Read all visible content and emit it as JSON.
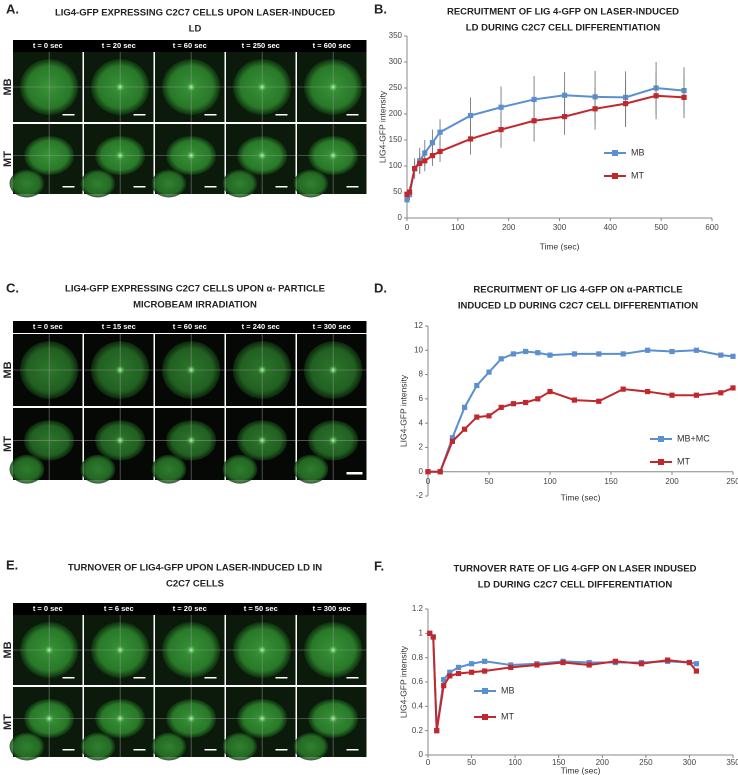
{
  "panels": [
    {
      "label": "A.",
      "title_lines": [
        "LIG4-GFP EXPRESSING C2C7 CELLS UPON LASER-INDUCED",
        "LD"
      ],
      "times": [
        "t = 0 sec",
        "t = 20 sec",
        "t = 60 sec",
        "t = 250 sec",
        "t = 600 sec"
      ],
      "rows": [
        "MB",
        "MT"
      ]
    },
    {
      "label": "C.",
      "title_lines": [
        "LIG4-GFP EXPRESSING C2C7 CELLS UPON α- PARTICLE",
        "MICROBEAM IRRADIATION"
      ],
      "times": [
        "t = 0 sec",
        "t = 15 sec",
        "t = 60 sec",
        "t = 240 sec",
        "t = 300 sec"
      ],
      "rows": [
        "MB",
        "MT"
      ]
    },
    {
      "label": "E.",
      "title_lines": [
        "TURNOVER OF LIG4-GFP UPON LASER-INDUCED LD IN",
        "C2C7 CELLS"
      ],
      "times": [
        "t = 0 sec",
        "t = 6 sec",
        "t = 20 sec",
        "t = 50 sec",
        "t = 300 sec"
      ],
      "rows": [
        "MB",
        "MT"
      ]
    }
  ],
  "chart_data": [
    {
      "type": "line",
      "panel_label": "B.",
      "title_lines": [
        "RECRUITMENT OF LIG 4-GFP ON LASER-INDUCED",
        "LD DURING C2C7 CELL DIFFERENTIATION"
      ],
      "x_label": "Time (sec)",
      "y_label": "LIG4-GFP intensity",
      "x": [
        0,
        5,
        15,
        25,
        35,
        50,
        65,
        125,
        185,
        250,
        310,
        370,
        430,
        490,
        545
      ],
      "series": [
        {
          "name": "MB",
          "color": "#5b8fd0",
          "values": [
            35,
            45,
            95,
            110,
            125,
            145,
            165,
            197,
            213,
            228,
            236,
            233,
            232,
            250,
            245
          ],
          "errors": [
            5,
            10,
            20,
            25,
            25,
            25,
            25,
            35,
            40,
            45,
            45,
            50,
            50,
            50,
            45
          ]
        },
        {
          "name": "MT",
          "color": "#c0282d",
          "values": [
            45,
            50,
            95,
            105,
            110,
            120,
            128,
            152,
            170,
            187,
            195,
            210,
            220,
            235,
            232
          ],
          "errors": [
            5,
            10,
            15,
            20,
            20,
            20,
            20,
            30,
            35,
            40,
            35,
            40,
            45,
            45,
            40
          ]
        }
      ],
      "xlim": [
        0,
        600
      ],
      "xticks": [
        0,
        100,
        200,
        300,
        400,
        500,
        600
      ],
      "ylim": [
        0,
        350
      ],
      "yticks": [
        0,
        50,
        100,
        150,
        200,
        250,
        300,
        350
      ]
    },
    {
      "type": "line",
      "panel_label": "D.",
      "title_lines": [
        "RECRUITMENT OF LIG 4-GFP ON α-PARTICLE",
        "INDUCED LD DURING C2C7 CELL DIFFERENTIATION"
      ],
      "x_label": "Time (sec)",
      "y_label": "LIG4-GFP intensity",
      "x": [
        0,
        10,
        20,
        30,
        40,
        50,
        60,
        70,
        80,
        90,
        100,
        120,
        140,
        160,
        180,
        200,
        220,
        240,
        250
      ],
      "series": [
        {
          "name": "MB+MC",
          "color": "#5b8fd0",
          "values": [
            0,
            0,
            2.8,
            5.3,
            7.1,
            8.2,
            9.3,
            9.7,
            9.9,
            9.8,
            9.6,
            9.7,
            9.7,
            9.7,
            10.0,
            9.9,
            10.0,
            9.6,
            9.5
          ]
        },
        {
          "name": "MT",
          "color": "#c0282d",
          "values": [
            0,
            0,
            2.5,
            3.5,
            4.5,
            4.6,
            5.3,
            5.6,
            5.7,
            6.0,
            6.6,
            5.9,
            5.8,
            6.8,
            6.6,
            6.3,
            6.3,
            6.5,
            6.9
          ]
        }
      ],
      "xlim": [
        0,
        250
      ],
      "xticks": [
        0,
        50,
        100,
        150,
        200,
        250
      ],
      "ylim": [
        -2,
        12
      ],
      "yticks": [
        -2,
        0,
        2,
        4,
        6,
        8,
        10,
        12
      ]
    },
    {
      "type": "line",
      "panel_label": "F.",
      "title_lines": [
        "TURNOVER RATE OF LIG 4-GFP ON LASER INDUSED",
        "LD DURING C2C7 CELL DIFFERENTIATION"
      ],
      "x_label": "Time (sec)",
      "y_label": "LIG4-GFP intensity",
      "x": [
        2,
        6,
        10,
        18,
        25,
        35,
        50,
        65,
        95,
        125,
        155,
        185,
        215,
        245,
        275,
        300,
        308
      ],
      "series": [
        {
          "name": "MB",
          "color": "#5b8fd0",
          "values": [
            1,
            0.97,
            0.2,
            0.62,
            0.68,
            0.72,
            0.75,
            0.77,
            0.74,
            0.75,
            0.77,
            0.76,
            0.76,
            0.76,
            0.77,
            0.76,
            0.75
          ]
        },
        {
          "name": "MT",
          "color": "#c0282d",
          "values": [
            1,
            0.97,
            0.2,
            0.57,
            0.65,
            0.67,
            0.68,
            0.69,
            0.72,
            0.74,
            0.76,
            0.74,
            0.77,
            0.75,
            0.78,
            0.76,
            0.69
          ]
        }
      ],
      "xlim": [
        0,
        350
      ],
      "xticks": [
        0,
        50,
        100,
        150,
        200,
        250,
        300,
        350
      ],
      "ylim": [
        0,
        1.2
      ],
      "yticks": [
        0,
        0.2,
        0.4,
        0.6,
        0.8,
        1,
        1.2
      ]
    }
  ]
}
